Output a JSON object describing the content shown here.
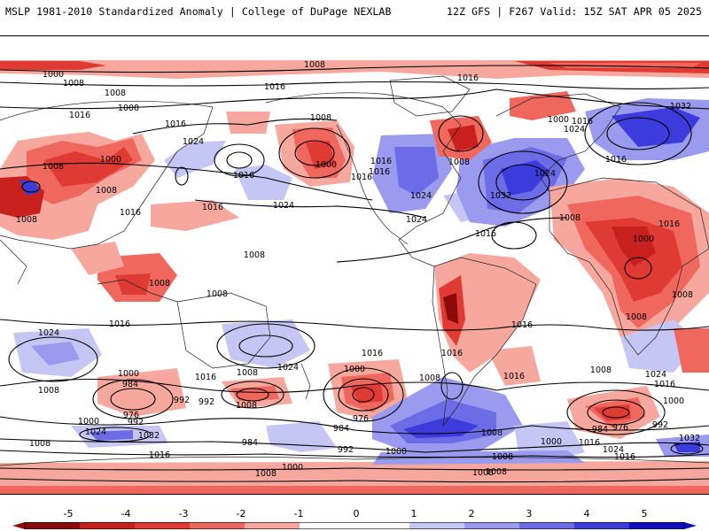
{
  "header": {
    "left": "MSLP 1981-2010 Standardized Anomaly | College of DuPage NEXLAB",
    "right": "12Z GFS | F267 Valid: 15Z SAT APR 05 2025"
  },
  "colors": {
    "neg_5": "#8b0a0a",
    "neg_4": "#c8201c",
    "neg_3": "#e03a35",
    "neg_2": "#f0675e",
    "neg_1": "#f7a89e",
    "zero": "#ffffff",
    "pos_1": "#c6c6f4",
    "pos_2": "#9a9aee",
    "pos_3": "#6c6ce6",
    "pos_4": "#3c3cdc",
    "pos_5": "#1010c0"
  },
  "colorbar": {
    "ticks": [
      "-5",
      "-4",
      "-3",
      "-2",
      "-1",
      "0",
      "1",
      "2",
      "3",
      "4",
      "5"
    ]
  },
  "isobar_labels": [
    "1008",
    "1000",
    "1008",
    "1008",
    "1016",
    "1008",
    "1016",
    "1024",
    "1016",
    "1008",
    "1000",
    "1016",
    "1016",
    "1016",
    "1008",
    "1016",
    "1032",
    "1000",
    "1024",
    "1016",
    "1000",
    "1008",
    "1016",
    "1008",
    "1016",
    "1024",
    "1016",
    "1024",
    "1016",
    "1032",
    "1024",
    "1016",
    "1024",
    "1008",
    "1016",
    "1008",
    "1008",
    "1008",
    "1000",
    "1008",
    "1008",
    "1016",
    "1008",
    "1016",
    "1024",
    "1016",
    "1008",
    "1016",
    "1016",
    "1008",
    "1024",
    "1016",
    "1024",
    "1016",
    "1008",
    "1000",
    "1000",
    "984",
    "992",
    "976",
    "1008",
    "992",
    "1000",
    "1008",
    "976",
    "984",
    "992",
    "1008",
    "1024",
    "1032",
    "1000",
    "992",
    "1016",
    "984",
    "992",
    "1000",
    "976",
    "984",
    "1008",
    "1000",
    "1016",
    "1024",
    "1016",
    "1032",
    "1008",
    "1008",
    "1000",
    "1008",
    "1008"
  ]
}
